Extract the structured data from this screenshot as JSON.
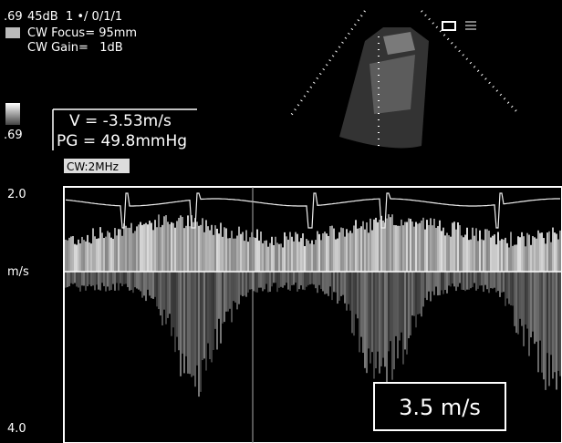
{
  "header": {
    "gain_index": ".69",
    "settings": "45dB  1 •/ 0/1/1",
    "focus": "CW Focus= 95mm",
    "gain": "CW Gain=   1dB"
  },
  "measurement": {
    "gray_index": ".69",
    "velocity": "V = -3.53m/s",
    "gradient": "PG = 49.8mmHg"
  },
  "mode": "CW:2MHz",
  "scale": {
    "top": "2.0",
    "unit": "m/s",
    "bottom": "4.0"
  },
  "annotation": "3.5 m/s"
}
